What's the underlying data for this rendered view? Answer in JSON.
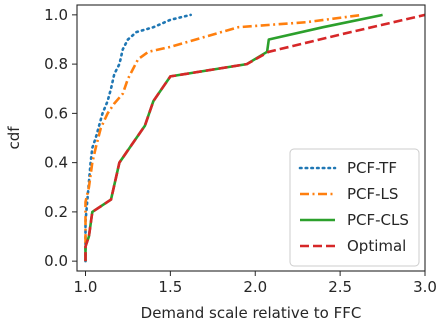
{
  "chart_data": {
    "type": "line",
    "title": "",
    "xlabel": "Demand scale relative to FFC",
    "ylabel": "cdf",
    "xlim": [
      0.95,
      3.0
    ],
    "ylim": [
      -0.04,
      1.04
    ],
    "xticks": [
      1.0,
      1.5,
      2.0,
      2.5,
      3.0
    ],
    "xtick_labels": [
      "1.0",
      "1.5",
      "2.0",
      "2.5",
      "3.0"
    ],
    "yticks": [
      0.0,
      0.2,
      0.4,
      0.6,
      0.8,
      1.0
    ],
    "ytick_labels": [
      "0.0",
      "0.2",
      "0.4",
      "0.6",
      "0.8",
      "1.0"
    ],
    "grid": false,
    "legend_position": "lower-right",
    "series": [
      {
        "name": "PCF-TF",
        "color": "#1f77b4",
        "dash": "dotted",
        "points": [
          [
            1.0,
            0.0
          ],
          [
            1.0,
            0.08
          ],
          [
            1.0,
            0.16
          ],
          [
            1.01,
            0.24
          ],
          [
            1.02,
            0.32
          ],
          [
            1.03,
            0.4
          ],
          [
            1.04,
            0.46
          ],
          [
            1.06,
            0.5
          ],
          [
            1.08,
            0.55
          ],
          [
            1.1,
            0.6
          ],
          [
            1.13,
            0.65
          ],
          [
            1.15,
            0.7
          ],
          [
            1.17,
            0.76
          ],
          [
            1.2,
            0.8
          ],
          [
            1.22,
            0.86
          ],
          [
            1.25,
            0.9
          ],
          [
            1.3,
            0.93
          ],
          [
            1.4,
            0.95
          ],
          [
            1.5,
            0.98
          ],
          [
            1.62,
            1.0
          ]
        ]
      },
      {
        "name": "PCF-LS",
        "color": "#ff7f0e",
        "dash": "dashdot",
        "points": [
          [
            1.0,
            0.0
          ],
          [
            1.0,
            0.1
          ],
          [
            1.0,
            0.24
          ],
          [
            1.02,
            0.3
          ],
          [
            1.04,
            0.4
          ],
          [
            1.06,
            0.46
          ],
          [
            1.09,
            0.54
          ],
          [
            1.13,
            0.6
          ],
          [
            1.17,
            0.64
          ],
          [
            1.22,
            0.68
          ],
          [
            1.25,
            0.74
          ],
          [
            1.28,
            0.78
          ],
          [
            1.31,
            0.82
          ],
          [
            1.37,
            0.85
          ],
          [
            1.5,
            0.87
          ],
          [
            1.7,
            0.91
          ],
          [
            1.9,
            0.95
          ],
          [
            2.1,
            0.96
          ],
          [
            2.3,
            0.97
          ],
          [
            2.63,
            1.0
          ]
        ]
      },
      {
        "name": "PCF-CLS",
        "color": "#2ca02c",
        "dash": "solid",
        "points": [
          [
            1.0,
            0.0
          ],
          [
            1.0,
            0.06
          ],
          [
            1.02,
            0.1
          ],
          [
            1.04,
            0.2
          ],
          [
            1.15,
            0.25
          ],
          [
            1.2,
            0.4
          ],
          [
            1.25,
            0.45
          ],
          [
            1.3,
            0.5
          ],
          [
            1.35,
            0.55
          ],
          [
            1.4,
            0.65
          ],
          [
            1.45,
            0.7
          ],
          [
            1.5,
            0.75
          ],
          [
            1.95,
            0.8
          ],
          [
            2.07,
            0.85
          ],
          [
            2.08,
            0.9
          ],
          [
            2.4,
            0.95
          ],
          [
            2.75,
            1.0
          ]
        ]
      },
      {
        "name": "Optimal",
        "color": "#d62728",
        "dash": "dashed",
        "points": [
          [
            1.0,
            0.0
          ],
          [
            1.0,
            0.06
          ],
          [
            1.02,
            0.1
          ],
          [
            1.04,
            0.2
          ],
          [
            1.15,
            0.25
          ],
          [
            1.2,
            0.4
          ],
          [
            1.25,
            0.45
          ],
          [
            1.3,
            0.5
          ],
          [
            1.35,
            0.55
          ],
          [
            1.4,
            0.65
          ],
          [
            1.45,
            0.7
          ],
          [
            1.5,
            0.75
          ],
          [
            1.95,
            0.8
          ],
          [
            2.08,
            0.85
          ],
          [
            2.5,
            0.92
          ],
          [
            3.0,
            1.0
          ]
        ]
      }
    ]
  }
}
